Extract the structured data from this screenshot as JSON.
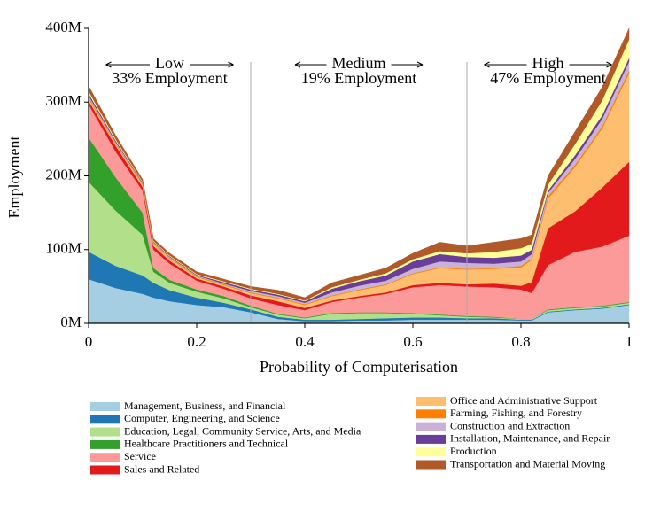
{
  "chart_data": {
    "type": "stacked-area",
    "x_label": "Probability of Computerisation",
    "y_label": "Employment",
    "xlim": [
      0,
      1
    ],
    "ylim": [
      0,
      400
    ],
    "xticks": [
      0,
      0.2,
      0.4,
      0.6,
      0.8,
      1
    ],
    "yticks": [
      {
        "value": 0,
        "label": "0M"
      },
      {
        "value": 100,
        "label": "100M"
      },
      {
        "value": 200,
        "label": "200M"
      },
      {
        "value": 300,
        "label": "300M"
      },
      {
        "value": 400,
        "label": "400M"
      }
    ],
    "boundaries": [
      0.3,
      0.7
    ],
    "regions": [
      {
        "label": "Low",
        "sublabel": "33% Employment"
      },
      {
        "label": "Medium",
        "sublabel": "19% Employment"
      },
      {
        "label": "High",
        "sublabel": "47% Employment"
      }
    ],
    "x": [
      0,
      0.05,
      0.1,
      0.12,
      0.15,
      0.2,
      0.25,
      0.3,
      0.35,
      0.4,
      0.45,
      0.5,
      0.55,
      0.6,
      0.65,
      0.7,
      0.75,
      0.8,
      0.82,
      0.85,
      0.9,
      0.95,
      1
    ],
    "series": [
      {
        "name": "Management, Business, and Financial",
        "color": "#a6cee3",
        "values": [
          60,
          48,
          40,
          35,
          30,
          25,
          22,
          15,
          6,
          3,
          3,
          4,
          4,
          5,
          5,
          5,
          5,
          4,
          4,
          15,
          18,
          20,
          25
        ]
      },
      {
        "name": "Computer, Engineering, and Science",
        "color": "#1f78b4",
        "values": [
          37,
          30,
          25,
          20,
          15,
          10,
          6,
          4,
          3,
          2,
          2,
          2,
          3,
          3,
          3,
          2,
          2,
          1,
          1,
          1,
          1,
          1,
          1
        ]
      },
      {
        "name": "Education, Legal, Community Service, Arts, and Media",
        "color": "#b2df8a",
        "values": [
          95,
          75,
          55,
          15,
          10,
          8,
          6,
          3,
          3,
          2,
          8,
          8,
          7,
          5,
          3,
          2,
          1,
          1,
          1,
          2,
          2,
          2,
          2
        ]
      },
      {
        "name": "Healthcare Practitioners and Technical",
        "color": "#33a02c",
        "values": [
          60,
          45,
          30,
          5,
          4,
          3,
          3,
          2,
          1,
          1,
          1,
          1,
          1,
          1,
          1,
          1,
          1,
          0,
          0,
          1,
          1,
          1,
          1
        ]
      },
      {
        "name": "Service",
        "color": "#fb9a99",
        "values": [
          45,
          35,
          30,
          25,
          22,
          12,
          10,
          10,
          12,
          10,
          15,
          20,
          25,
          35,
          40,
          40,
          40,
          40,
          35,
          60,
          75,
          80,
          90
        ]
      },
      {
        "name": "Sales and Related",
        "color": "#e31a1c",
        "values": [
          5,
          8,
          5,
          5,
          4,
          3,
          3,
          4,
          5,
          3,
          2,
          2,
          2,
          3,
          3,
          3,
          5,
          5,
          15,
          50,
          55,
          80,
          100
        ]
      },
      {
        "name": "Office and Administrative Support",
        "color": "#fdbf6f",
        "values": [
          3,
          2,
          3,
          3,
          3,
          2,
          2,
          3,
          4,
          4,
          6,
          8,
          10,
          15,
          20,
          20,
          20,
          25,
          30,
          40,
          60,
          80,
          120
        ]
      },
      {
        "name": "Farming, Fishing, and Forestry",
        "color": "#ff7f00",
        "values": [
          2,
          1,
          1,
          1,
          1,
          1,
          1,
          1,
          1,
          1,
          1,
          1,
          1,
          1,
          1,
          1,
          1,
          2,
          2,
          3,
          3,
          3,
          4
        ]
      },
      {
        "name": "Construction and Extraction",
        "color": "#cab2d6",
        "values": [
          2,
          2,
          1,
          1,
          1,
          1,
          1,
          2,
          2,
          2,
          4,
          5,
          5,
          6,
          8,
          8,
          6,
          6,
          6,
          5,
          8,
          10,
          12
        ]
      },
      {
        "name": "Installation, Maintenance, and Repair",
        "color": "#6a3d9a",
        "values": [
          3,
          2,
          1,
          1,
          1,
          1,
          2,
          2,
          2,
          2,
          5,
          6,
          7,
          10,
          10,
          8,
          8,
          8,
          6,
          3,
          5,
          5,
          5
        ]
      },
      {
        "name": "Production",
        "color": "#ffff99",
        "values": [
          3,
          2,
          1,
          1,
          1,
          1,
          1,
          1,
          1,
          1,
          2,
          2,
          3,
          3,
          4,
          5,
          8,
          10,
          8,
          8,
          15,
          20,
          25
        ]
      },
      {
        "name": "Transportation and Material Moving",
        "color": "#b15928",
        "values": [
          7,
          5,
          3,
          3,
          3,
          3,
          3,
          3,
          5,
          4,
          6,
          6,
          7,
          8,
          12,
          10,
          13,
          13,
          12,
          12,
          17,
          18,
          15
        ]
      }
    ]
  }
}
